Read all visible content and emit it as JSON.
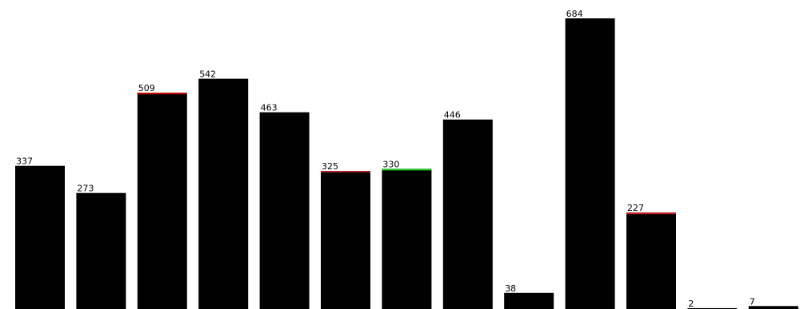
{
  "chart_data": {
    "type": "bar",
    "values": [
      337,
      273,
      509,
      542,
      463,
      325,
      330,
      446,
      38,
      684,
      227,
      2,
      7
    ],
    "labels": [
      "337",
      "273",
      "509",
      "542",
      "463",
      "325",
      "330",
      "446",
      "38",
      "684",
      "227",
      "2",
      "7"
    ],
    "cap_colors": [
      null,
      null,
      "#cc0000",
      null,
      null,
      "#aa2222",
      "#22cc22",
      null,
      null,
      null,
      "#cc2222",
      null,
      null
    ],
    "bar_color": "#000000",
    "ylim": [
      0,
      700
    ],
    "grid": false,
    "legend": "none"
  }
}
